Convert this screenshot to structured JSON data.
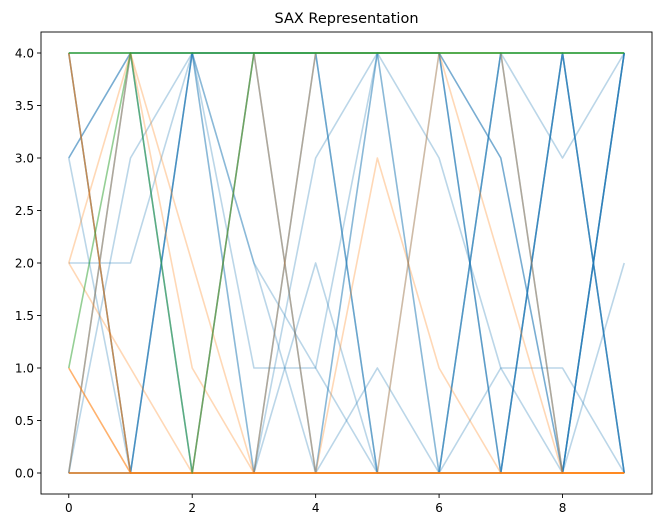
{
  "chart_data": {
    "type": "line",
    "title": "SAX Representation",
    "xlabel": "",
    "ylabel": "",
    "xlim": [
      -0.45,
      9.45
    ],
    "ylim": [
      -0.2,
      4.2
    ],
    "x_ticks": [
      0,
      2,
      4,
      6,
      8
    ],
    "y_ticks": [
      0.0,
      0.5,
      1.0,
      1.5,
      2.0,
      2.5,
      3.0,
      3.5,
      4.0
    ],
    "x_tick_labels": [
      "0",
      "2",
      "4",
      "6",
      "8"
    ],
    "y_tick_labels": [
      "0.0",
      "0.5",
      "1.0",
      "1.5",
      "2.0",
      "2.5",
      "3.0",
      "3.5",
      "4.0"
    ],
    "grid": false,
    "legend": "none",
    "x": [
      0,
      1,
      2,
      3,
      4,
      5,
      6,
      7,
      8,
      9
    ],
    "series": [
      {
        "color": "#1f77b4",
        "opacity": 0.3,
        "values": [
          4,
          4,
          0,
          0,
          4,
          0,
          0,
          4,
          4,
          4
        ]
      },
      {
        "color": "#1f77b4",
        "opacity": 0.3,
        "values": [
          0,
          4,
          4,
          1,
          1,
          4,
          0,
          4,
          0,
          4
        ]
      },
      {
        "color": "#1f77b4",
        "opacity": 0.3,
        "values": [
          2,
          2,
          4,
          2,
          0,
          4,
          3,
          1,
          0,
          2
        ]
      },
      {
        "color": "#1f77b4",
        "opacity": 0.3,
        "values": [
          0,
          3,
          4,
          0,
          3,
          4,
          0,
          1,
          1,
          0
        ]
      },
      {
        "color": "#1f77b4",
        "opacity": 0.3,
        "values": [
          0,
          4,
          0,
          4,
          4,
          0,
          0,
          4,
          3,
          4
        ]
      },
      {
        "color": "#1f77b4",
        "opacity": 0.3,
        "values": [
          3,
          0,
          4,
          4,
          0,
          1,
          0,
          0,
          4,
          0
        ]
      },
      {
        "color": "#1f77b4",
        "opacity": 0.3,
        "values": [
          0,
          0,
          4,
          0,
          2,
          0,
          0,
          4,
          0,
          4
        ]
      },
      {
        "color": "#1f77b4",
        "opacity": 0.3,
        "values": [
          4,
          4,
          4,
          2,
          1,
          0,
          4,
          4,
          4,
          4
        ]
      },
      {
        "color": "#1f77b4",
        "opacity": 0.3,
        "values": [
          0,
          0,
          0,
          4,
          0,
          4,
          4,
          0,
          4,
          0
        ]
      },
      {
        "color": "#1f77b4",
        "opacity": 0.3,
        "values": [
          4,
          0,
          0,
          0,
          4,
          0,
          0,
          0,
          4,
          0
        ]
      },
      {
        "color": "#1f77b4",
        "opacity": 0.6,
        "values": [
          3,
          4,
          4,
          4,
          4,
          4,
          4,
          3,
          0,
          4
        ]
      },
      {
        "color": "#1f77b4",
        "opacity": 0.6,
        "values": [
          4,
          0,
          4,
          4,
          4,
          4,
          4,
          0,
          4,
          0
        ]
      },
      {
        "color": "#1f77b4",
        "opacity": 0.6,
        "values": [
          0,
          0,
          0,
          0,
          0,
          0,
          0,
          0,
          0,
          4
        ]
      },
      {
        "color": "#ff7f0e",
        "opacity": 0.3,
        "values": [
          2,
          4,
          1,
          0,
          4,
          4,
          4,
          4,
          0,
          0
        ]
      },
      {
        "color": "#ff7f0e",
        "opacity": 0.3,
        "values": [
          2,
          1,
          0,
          4,
          0,
          3,
          1,
          0,
          0,
          0
        ]
      },
      {
        "color": "#ff7f0e",
        "opacity": 0.3,
        "values": [
          0,
          4,
          2,
          0,
          0,
          0,
          4,
          2,
          0,
          0
        ]
      },
      {
        "color": "#ff7f0e",
        "opacity": 0.6,
        "values": [
          4,
          0,
          0,
          0,
          0,
          0,
          0,
          0,
          0,
          0
        ]
      },
      {
        "color": "#ff7f0e",
        "opacity": 0.6,
        "values": [
          1,
          0,
          0,
          0,
          0,
          0,
          0,
          0,
          0,
          0
        ]
      },
      {
        "color": "#ff7f0e",
        "opacity": 0.9,
        "values": [
          0,
          0,
          0,
          0,
          0,
          0,
          0,
          0,
          0,
          0
        ]
      },
      {
        "color": "#2ca02c",
        "opacity": 0.5,
        "values": [
          1,
          4,
          0,
          4,
          4,
          4,
          4,
          4,
          4,
          4
        ]
      },
      {
        "color": "#2ca02c",
        "opacity": 0.9,
        "values": [
          4,
          4,
          4,
          4,
          4,
          4,
          4,
          4,
          4,
          4
        ]
      }
    ]
  }
}
